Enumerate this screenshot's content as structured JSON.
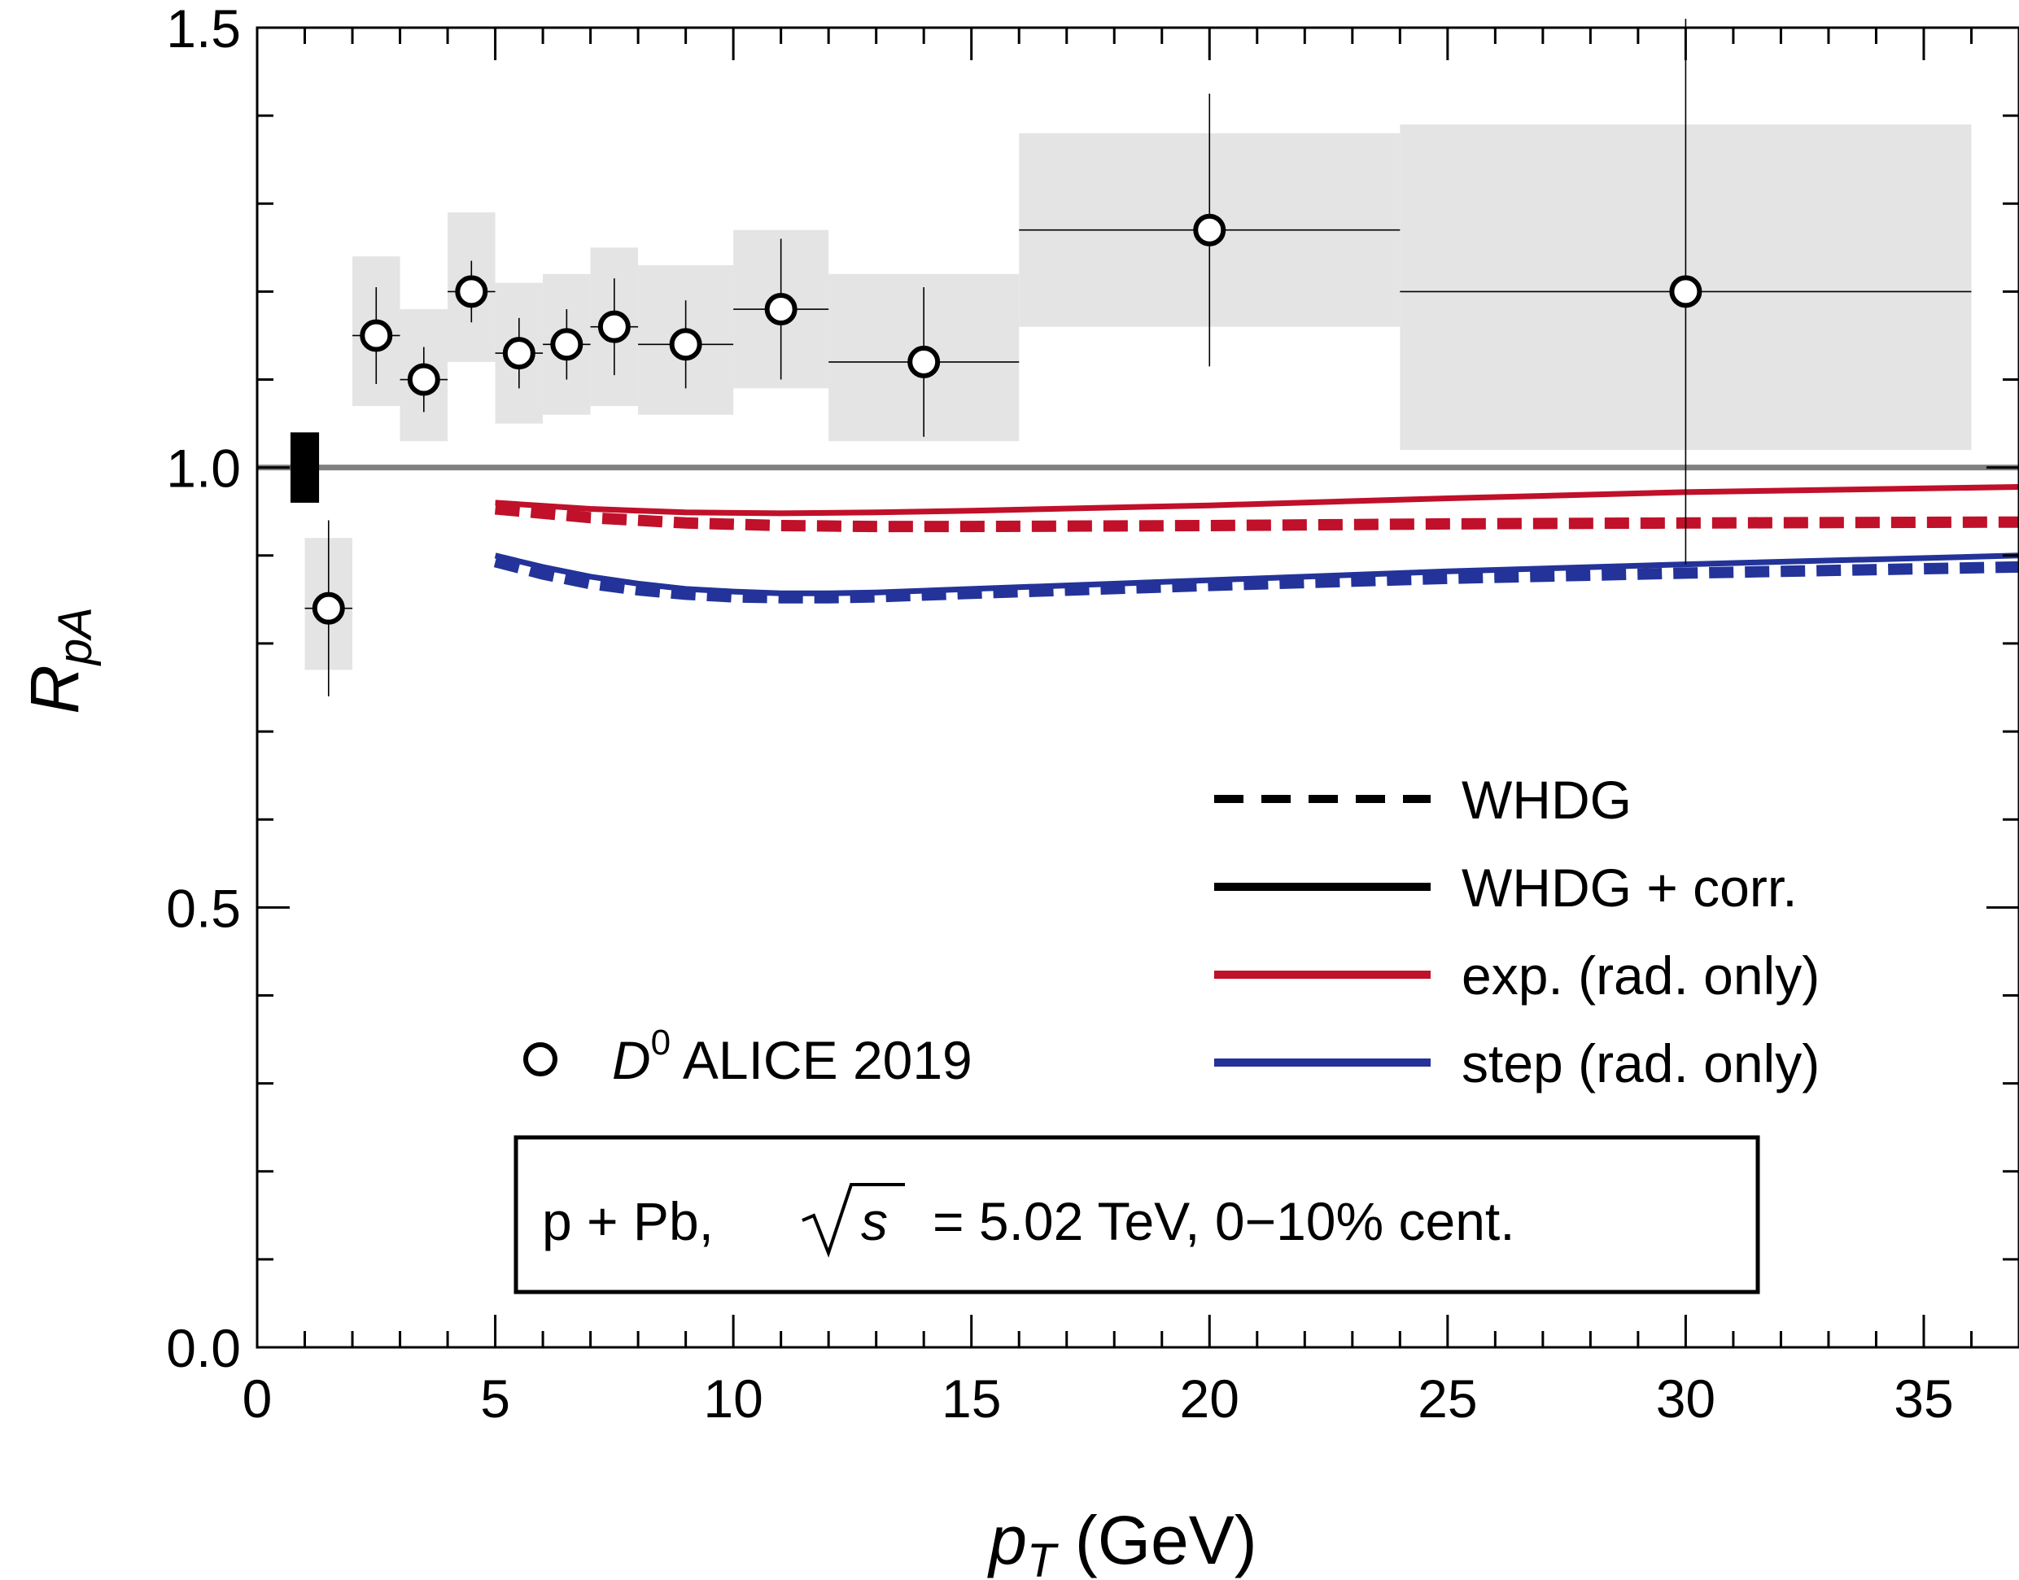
{
  "chart_data": {
    "type": "scatter",
    "xlabel": {
      "main": "p",
      "sub": "T",
      "unit": " (GeV)"
    },
    "ylabel": {
      "main": "R",
      "sub": "pA"
    },
    "xlim": [
      0,
      37
    ],
    "ylim": [
      0,
      1.5
    ],
    "x_ticks": [
      0,
      5,
      10,
      15,
      20,
      25,
      30,
      35
    ],
    "x_tick_labels": [
      "0",
      "5",
      "10",
      "15",
      "20",
      "25",
      "30",
      "35"
    ],
    "y_ticks": [
      0.0,
      0.5,
      1.0,
      1.5
    ],
    "y_tick_labels": [
      "0.0",
      "0.5",
      "1.0",
      "1.5"
    ],
    "grid": false,
    "reference_line": {
      "y": 1.0,
      "color": "#808080"
    },
    "normalization_box": {
      "x": [
        0.7,
        1.3
      ],
      "y": [
        0.96,
        1.04
      ],
      "color": "#000000"
    },
    "data_series": {
      "name": "D0 ALICE 2019",
      "label": {
        "main": "D",
        "sup": "0",
        "rest": " ALICE 2019"
      },
      "marker": "open-circle",
      "points": [
        {
          "x": 1.5,
          "y": 0.84,
          "xerr": 0.5,
          "yerr": [
            0.1,
            0.1
          ],
          "sys": [
            0.77,
            0.92
          ]
        },
        {
          "x": 2.5,
          "y": 1.15,
          "xerr": 0.5,
          "yerr": [
            0.055,
            0.055
          ],
          "sys": [
            1.07,
            1.24
          ]
        },
        {
          "x": 3.5,
          "y": 1.1,
          "xerr": 0.5,
          "yerr": [
            0.037,
            0.037
          ],
          "sys": [
            1.03,
            1.18
          ]
        },
        {
          "x": 4.5,
          "y": 1.2,
          "xerr": 0.5,
          "yerr": [
            0.035,
            0.035
          ],
          "sys": [
            1.12,
            1.29
          ]
        },
        {
          "x": 5.5,
          "y": 1.13,
          "xerr": 0.5,
          "yerr": [
            0.04,
            0.04
          ],
          "sys": [
            1.05,
            1.21
          ]
        },
        {
          "x": 6.5,
          "y": 1.14,
          "xerr": 0.5,
          "yerr": [
            0.04,
            0.04
          ],
          "sys": [
            1.06,
            1.22
          ]
        },
        {
          "x": 7.5,
          "y": 1.16,
          "xerr": 0.5,
          "yerr": [
            0.055,
            0.055
          ],
          "sys": [
            1.07,
            1.25
          ]
        },
        {
          "x": 9.0,
          "y": 1.14,
          "xerr": 1.0,
          "yerr": [
            0.05,
            0.05
          ],
          "sys": [
            1.06,
            1.23
          ]
        },
        {
          "x": 11.0,
          "y": 1.18,
          "xerr": 1.0,
          "yerr": [
            0.08,
            0.08
          ],
          "sys": [
            1.09,
            1.27
          ]
        },
        {
          "x": 14.0,
          "y": 1.12,
          "xerr": 2.0,
          "yerr": [
            0.085,
            0.085
          ],
          "sys": [
            1.03,
            1.22
          ]
        },
        {
          "x": 20.0,
          "y": 1.27,
          "xerr": 4.0,
          "yerr": [
            0.155,
            0.155
          ],
          "sys": [
            1.16,
            1.38
          ]
        },
        {
          "x": 30.0,
          "y": 1.2,
          "xerr": 6.0,
          "yerr": [
            0.31,
            0.31
          ],
          "sys": [
            1.02,
            1.39
          ]
        }
      ]
    },
    "series": [
      {
        "name": "exp. (rad. only) — WHDG + corr.",
        "color": "#c0102a",
        "style": "solid",
        "x": [
          5,
          7,
          9,
          11,
          13,
          15,
          20,
          25,
          30,
          37
        ],
        "y": [
          0.96,
          0.953,
          0.949,
          0.948,
          0.949,
          0.951,
          0.957,
          0.965,
          0.972,
          0.978
        ]
      },
      {
        "name": "exp. (rad. only) — WHDG",
        "color": "#c0102a",
        "style": "dashed",
        "x": [
          5,
          7,
          9,
          11,
          13,
          15,
          20,
          25,
          30,
          37
        ],
        "y": [
          0.953,
          0.943,
          0.937,
          0.934,
          0.933,
          0.933,
          0.934,
          0.936,
          0.937,
          0.938
        ]
      },
      {
        "name": "step (rad. only) — WHDG + corr.",
        "color": "#233399",
        "style": "solid",
        "x": [
          5,
          6,
          7,
          8,
          9,
          10,
          11,
          12,
          13,
          15,
          20,
          25,
          30,
          37
        ],
        "y": [
          0.9,
          0.887,
          0.876,
          0.868,
          0.862,
          0.859,
          0.857,
          0.857,
          0.858,
          0.862,
          0.872,
          0.882,
          0.89,
          0.9
        ]
      },
      {
        "name": "step (rad. only) — WHDG",
        "color": "#233399",
        "style": "dashed",
        "x": [
          5,
          6,
          7,
          8,
          9,
          10,
          11,
          12,
          13,
          15,
          20,
          25,
          30,
          37
        ],
        "y": [
          0.893,
          0.879,
          0.868,
          0.861,
          0.856,
          0.853,
          0.852,
          0.852,
          0.853,
          0.857,
          0.866,
          0.874,
          0.88,
          0.887
        ]
      }
    ],
    "legend": {
      "placement": "right",
      "entries": [
        {
          "label": "WHDG",
          "color": "#000000",
          "style": "dashed"
        },
        {
          "label": "WHDG + corr.",
          "color": "#000000",
          "style": "solid"
        },
        {
          "label": "exp. (rad. only)",
          "color": "#c0102a",
          "style": "solid"
        },
        {
          "label": "step (rad. only)",
          "color": "#233399",
          "style": "solid"
        }
      ]
    },
    "annotation": {
      "before": "p + Pb,",
      "sqrt_arg": "s",
      "after": "= 5.02 TeV, 0−10% cent."
    }
  }
}
